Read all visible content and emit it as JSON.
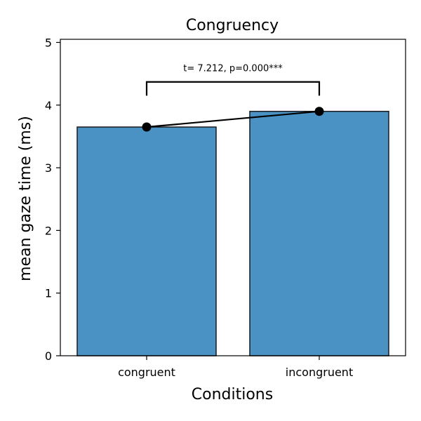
{
  "chart_data": {
    "type": "bar",
    "title": "Congruency",
    "xlabel": "Conditions",
    "ylabel": "mean gaze time (ms)",
    "categories": [
      "congruent",
      "incongruent"
    ],
    "values": [
      3.65,
      3.9
    ],
    "ylim": [
      0,
      5.05
    ],
    "yticks": [
      "0",
      "1",
      "2",
      "3",
      "4",
      "5"
    ],
    "grid": false,
    "bar_color": "#4a92c4",
    "bar_edge_color": "#1a1a1a",
    "connector": {
      "type": "line-with-markers",
      "color": "#000000",
      "points": [
        3.65,
        3.9
      ]
    },
    "significance": {
      "text": "t= 7.212, p=0.000***",
      "bracket_y": 4.37,
      "bracket_bottom": 4.15
    }
  }
}
